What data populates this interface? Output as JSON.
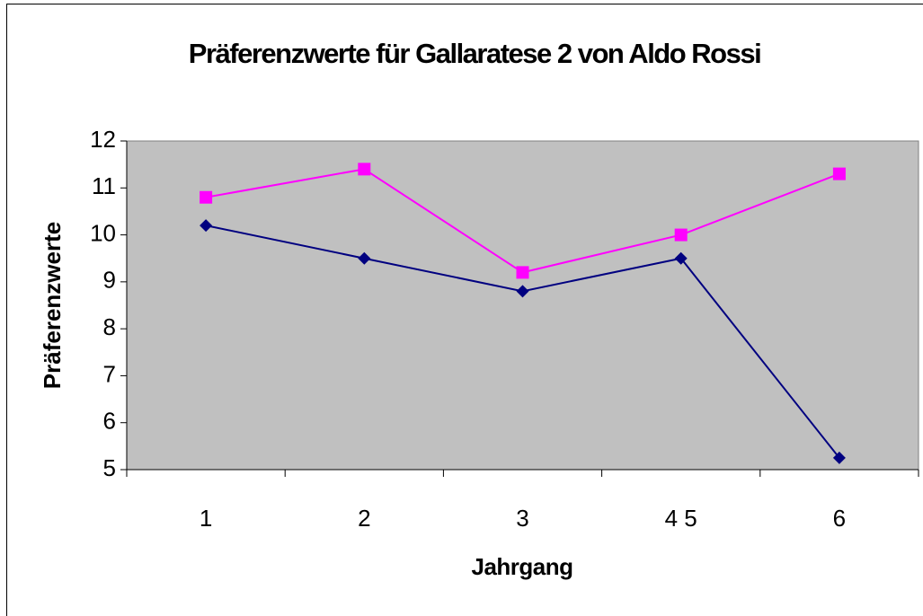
{
  "chart_data": {
    "type": "line",
    "title": "Präferenzwerte für Gallaratese 2 von Aldo Rossi",
    "x_label": "Jahrgang",
    "y_label": "Präferenzwerte",
    "categories": [
      "1",
      "2",
      "3",
      "4 5",
      "6"
    ],
    "series": [
      {
        "color": "#ff00ff",
        "marker": "square",
        "values": [
          10.8,
          11.4,
          9.2,
          10.0,
          11.3
        ]
      },
      {
        "color": "#000080",
        "marker": "diamond",
        "values": [
          10.2,
          9.5,
          8.8,
          9.5,
          5.25
        ]
      }
    ],
    "ylim": [
      5,
      12
    ],
    "yticks": [
      5,
      6,
      7,
      8,
      9,
      10,
      11,
      12
    ],
    "grid": false,
    "plot_background": "#c0c0c0"
  }
}
